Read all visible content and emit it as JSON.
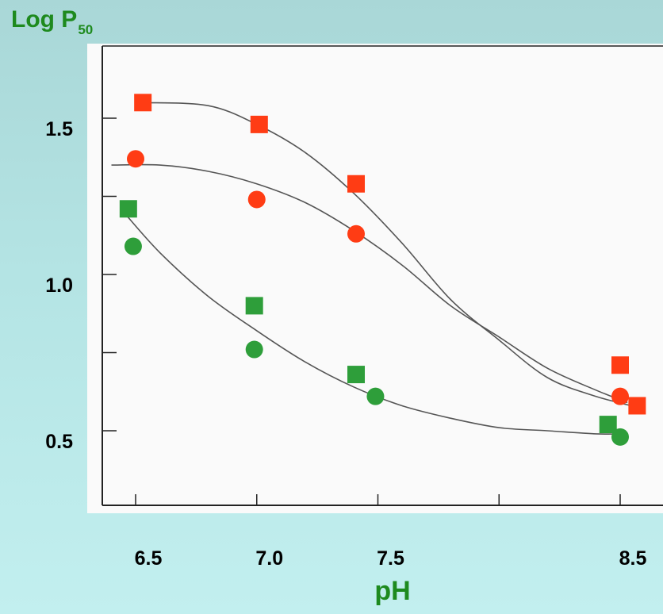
{
  "chart_data": {
    "type": "scatter",
    "title": "",
    "ylabel_main": "Log P",
    "ylabel_sub": "50",
    "xlabel": "pH",
    "yticks": [
      "1.5",
      "1.0",
      "0.5"
    ],
    "xticks": [
      "6.5",
      "7.0",
      "7.5",
      "8.5"
    ],
    "grid": false,
    "legend": "none",
    "series": [
      {
        "marker": "square",
        "color": "#ff3c14",
        "points": [
          [
            6.53,
            1.55
          ],
          [
            7.01,
            1.48
          ],
          [
            7.41,
            1.29
          ],
          [
            8.5,
            0.71
          ],
          [
            8.57,
            0.58
          ]
        ],
        "curve": [
          [
            6.53,
            1.55
          ],
          [
            6.8,
            1.54
          ],
          [
            7.0,
            1.48
          ],
          [
            7.2,
            1.39
          ],
          [
            7.4,
            1.26
          ],
          [
            7.6,
            1.1
          ],
          [
            7.8,
            0.92
          ],
          [
            8.0,
            0.79
          ],
          [
            8.2,
            0.67
          ],
          [
            8.4,
            0.61
          ],
          [
            8.6,
            0.57
          ]
        ]
      },
      {
        "marker": "circle",
        "color": "#ff3c14",
        "points": [
          [
            6.5,
            1.37
          ],
          [
            7.0,
            1.24
          ],
          [
            7.41,
            1.13
          ],
          [
            8.5,
            0.61
          ]
        ],
        "curve": [
          [
            6.4,
            1.35
          ],
          [
            6.6,
            1.35
          ],
          [
            6.8,
            1.33
          ],
          [
            7.0,
            1.29
          ],
          [
            7.2,
            1.23
          ],
          [
            7.4,
            1.14
          ],
          [
            7.6,
            1.03
          ],
          [
            7.8,
            0.9
          ],
          [
            8.0,
            0.8
          ],
          [
            8.2,
            0.7
          ],
          [
            8.4,
            0.63
          ],
          [
            8.53,
            0.59
          ]
        ]
      },
      {
        "marker": "square",
        "color": "#2e9e3a",
        "points": [
          [
            6.47,
            1.21
          ],
          [
            6.99,
            0.9
          ],
          [
            7.41,
            0.68
          ],
          [
            8.45,
            0.52
          ]
        ]
      },
      {
        "marker": "circle",
        "color": "#2e9e3a",
        "points": [
          [
            6.49,
            1.09
          ],
          [
            6.99,
            0.76
          ],
          [
            7.49,
            0.61
          ],
          [
            8.5,
            0.48
          ]
        ],
        "curve": [
          [
            6.45,
            1.2
          ],
          [
            6.6,
            1.07
          ],
          [
            6.8,
            0.93
          ],
          [
            7.0,
            0.82
          ],
          [
            7.2,
            0.72
          ],
          [
            7.4,
            0.64
          ],
          [
            7.6,
            0.58
          ],
          [
            7.8,
            0.54
          ],
          [
            8.0,
            0.51
          ],
          [
            8.2,
            0.5
          ],
          [
            8.4,
            0.49
          ],
          [
            8.52,
            0.49
          ]
        ]
      }
    ]
  }
}
